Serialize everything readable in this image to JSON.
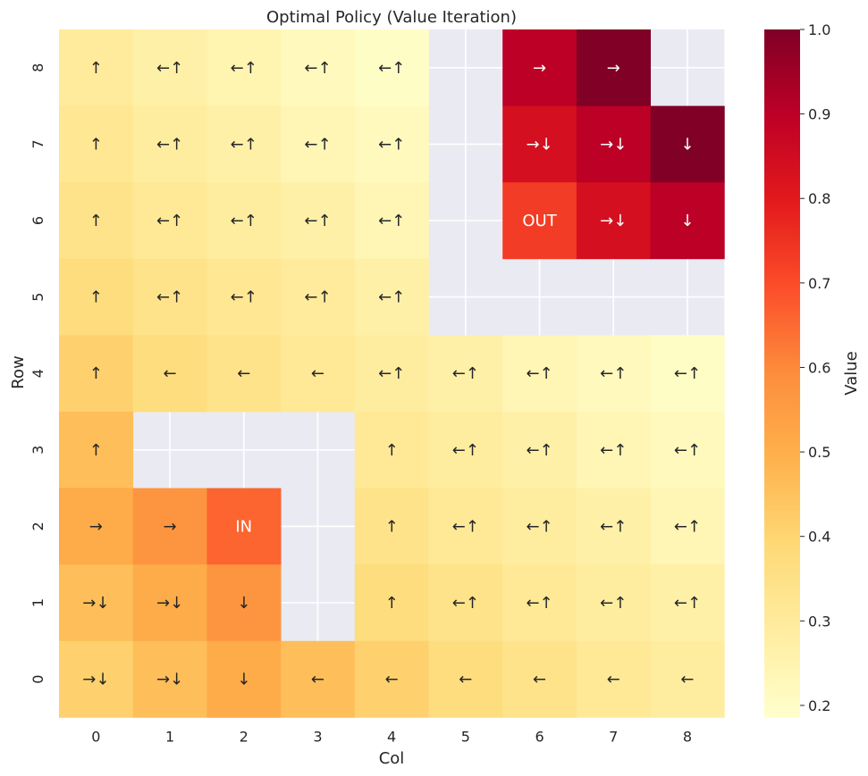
{
  "chart_data": {
    "type": "heatmap",
    "title": "Optimal Policy (Value Iteration)",
    "xlabel": "Col",
    "ylabel": "Row",
    "colorbar_label": "Value",
    "colormap": "YlOrRd",
    "vmin": 0.1862,
    "vmax": 1.0,
    "colorbar_ticks": [
      "0.2",
      "0.3",
      "0.4",
      "0.5",
      "0.6",
      "0.7",
      "0.8",
      "0.9",
      "1.0"
    ],
    "colorbar_tick_values": [
      0.2,
      0.3,
      0.4,
      0.5,
      0.6,
      0.7,
      0.8,
      0.9,
      1.0
    ],
    "x_ticks": [
      "0",
      "1",
      "2",
      "3",
      "4",
      "5",
      "6",
      "7",
      "8"
    ],
    "y_ticks": [
      "0",
      "1",
      "2",
      "3",
      "4",
      "5",
      "6",
      "7",
      "8"
    ],
    "masked_color": "#eaeaf2",
    "rows": [
      {
        "row": 8,
        "values": [
          0.3,
          0.27,
          0.25,
          0.22,
          0.2,
          null,
          0.9,
          1.0,
          null
        ],
        "actions": [
          "↑",
          "←↑",
          "←↑",
          "←↑",
          "←↑",
          "",
          "→",
          "→",
          ""
        ]
      },
      {
        "row": 7,
        "values": [
          0.32,
          0.29,
          0.27,
          0.24,
          0.22,
          null,
          0.84,
          0.9,
          1.0
        ],
        "actions": [
          "↑",
          "←↑",
          "←↑",
          "←↑",
          "←↑",
          "",
          "→↓",
          "→↓",
          "↓"
        ]
      },
      {
        "row": 6,
        "values": [
          0.34,
          0.31,
          0.29,
          0.27,
          0.24,
          null,
          0.73,
          0.84,
          0.9
        ],
        "actions": [
          "↑",
          "←↑",
          "←↑",
          "←↑",
          "←↑",
          "",
          "OUT",
          "→↓",
          "↓"
        ]
      },
      {
        "row": 5,
        "values": [
          0.37,
          0.34,
          0.32,
          0.3,
          0.27,
          null,
          null,
          null,
          null
        ],
        "actions": [
          "↑",
          "←↑",
          "←↑",
          "←↑",
          "←↑",
          "",
          "",
          "",
          ""
        ]
      },
      {
        "row": 4,
        "values": [
          0.41,
          0.37,
          0.34,
          0.31,
          0.29,
          0.27,
          0.24,
          0.22,
          0.2
        ],
        "actions": [
          "↑",
          "←",
          "←",
          "←",
          "←↑",
          "←↑",
          "←↑",
          "←↑",
          "←↑"
        ]
      },
      {
        "row": 3,
        "values": [
          0.46,
          null,
          null,
          null,
          0.31,
          0.29,
          0.27,
          0.24,
          0.22
        ],
        "actions": [
          "↑",
          "",
          "",
          "",
          "↑",
          "←↑",
          "←↑",
          "←↑",
          "←↑"
        ]
      },
      {
        "row": 2,
        "values": [
          0.51,
          0.57,
          0.66,
          null,
          0.34,
          0.31,
          0.29,
          0.27,
          0.24
        ],
        "actions": [
          "→",
          "→",
          "IN",
          "",
          "↑",
          "←↑",
          "←↑",
          "←↑",
          "←↑"
        ]
      },
      {
        "row": 1,
        "values": [
          0.46,
          0.51,
          0.57,
          null,
          0.37,
          0.34,
          0.31,
          0.29,
          0.27
        ],
        "actions": [
          "→↓",
          "→↓",
          "↓",
          "",
          "↑",
          "←↑",
          "←↑",
          "←↑",
          "←↑"
        ]
      },
      {
        "row": 0,
        "values": [
          0.41,
          0.46,
          0.51,
          0.46,
          0.41,
          0.37,
          0.34,
          0.31,
          0.29
        ],
        "actions": [
          "→↓",
          "→↓",
          "↓",
          "←",
          "←",
          "←",
          "←",
          "←",
          "←"
        ]
      }
    ]
  }
}
